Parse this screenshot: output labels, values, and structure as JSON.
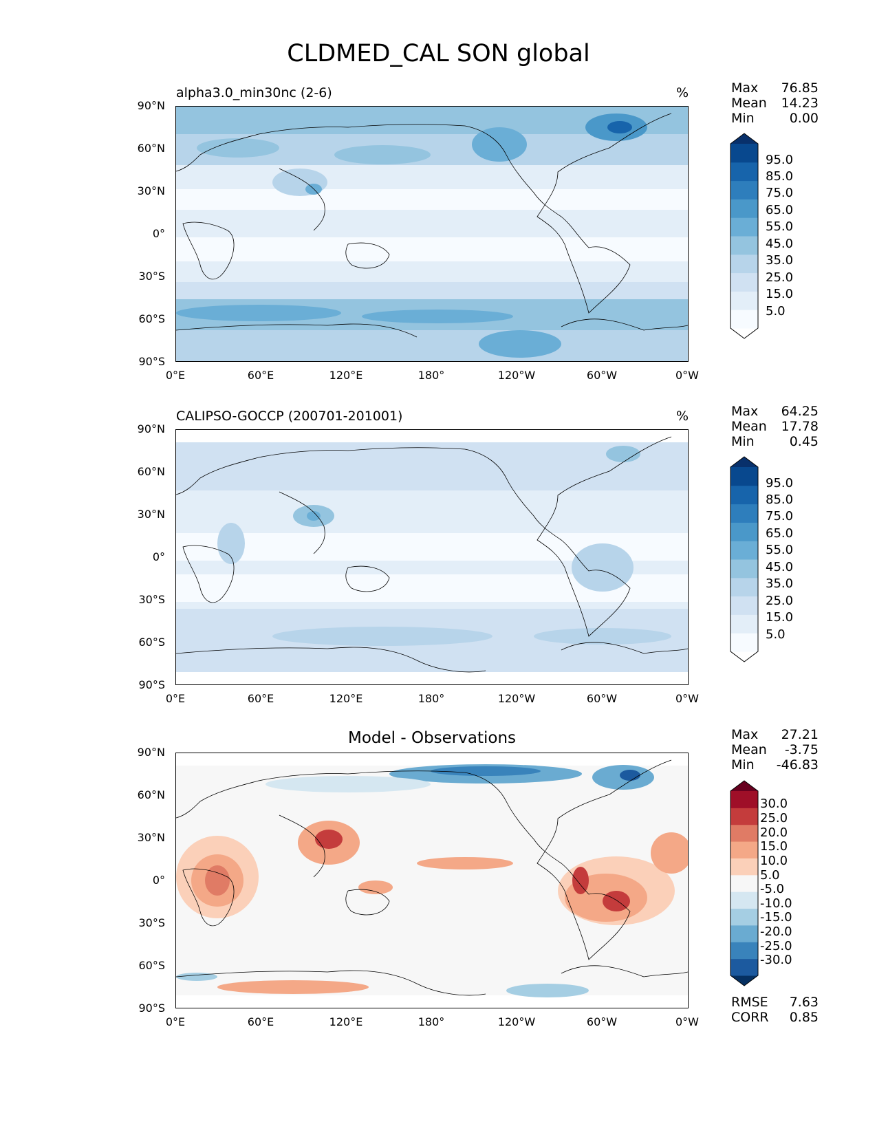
{
  "title": "CLDMED_CAL SON global",
  "x_ticks": [
    "0°E",
    "60°E",
    "120°E",
    "180°",
    "120°W",
    "60°W",
    "0°W"
  ],
  "y_ticks": [
    "90°N",
    "60°N",
    "30°N",
    "0°",
    "30°S",
    "60°S",
    "90°S"
  ],
  "colors": {
    "blues": [
      "#f7fbff",
      "#e3eef8",
      "#d0e1f2",
      "#b7d4ea",
      "#94c4df",
      "#6aaed6",
      "#4a98c9",
      "#2e7ebc",
      "#1764ab",
      "#08488e",
      "#08306b"
    ],
    "diverging": [
      "#67001f",
      "#9f0f28",
      "#c43c3c",
      "#e07b65",
      "#f4a887",
      "#fbd0b9",
      "#f7f7f7",
      "#d5e7f1",
      "#a5cee3",
      "#6aabd1",
      "#3983bb",
      "#1c5a9f",
      "#053061"
    ]
  },
  "panels": [
    {
      "title": "alpha3.0_min30nc (2-6)",
      "units": "%",
      "stats": [
        {
          "label": "Max",
          "value": "76.85"
        },
        {
          "label": "Mean",
          "value": "14.23"
        },
        {
          "label": "Min",
          "value": "0.00"
        }
      ],
      "colorbar": {
        "type": "sequential",
        "labels": [
          "95.0",
          "85.0",
          "75.0",
          "65.0",
          "55.0",
          "45.0",
          "35.0",
          "25.0",
          "15.0",
          "5.0"
        ]
      }
    },
    {
      "title": "CALIPSO-GOCCP (200701-201001)",
      "units": "%",
      "stats": [
        {
          "label": "Max",
          "value": "64.25"
        },
        {
          "label": "Mean",
          "value": "17.78"
        },
        {
          "label": "Min",
          "value": "0.45"
        }
      ],
      "colorbar": {
        "type": "sequential",
        "labels": [
          "95.0",
          "85.0",
          "75.0",
          "65.0",
          "55.0",
          "45.0",
          "35.0",
          "25.0",
          "15.0",
          "5.0"
        ]
      }
    },
    {
      "title": "Model - Observations",
      "units": "",
      "stats": [
        {
          "label": "Max",
          "value": "27.21"
        },
        {
          "label": "Mean",
          "value": "-3.75"
        },
        {
          "label": "Min",
          "value": "-46.83"
        }
      ],
      "extra_stats": [
        {
          "label": "RMSE",
          "value": "7.63"
        },
        {
          "label": "CORR",
          "value": "0.85"
        }
      ],
      "colorbar": {
        "type": "diverging",
        "labels": [
          "30.0",
          "25.0",
          "20.0",
          "15.0",
          "10.0",
          "5.0",
          "-5.0",
          "-10.0",
          "-15.0",
          "-20.0",
          "-25.0",
          "-30.0"
        ]
      }
    }
  ]
}
